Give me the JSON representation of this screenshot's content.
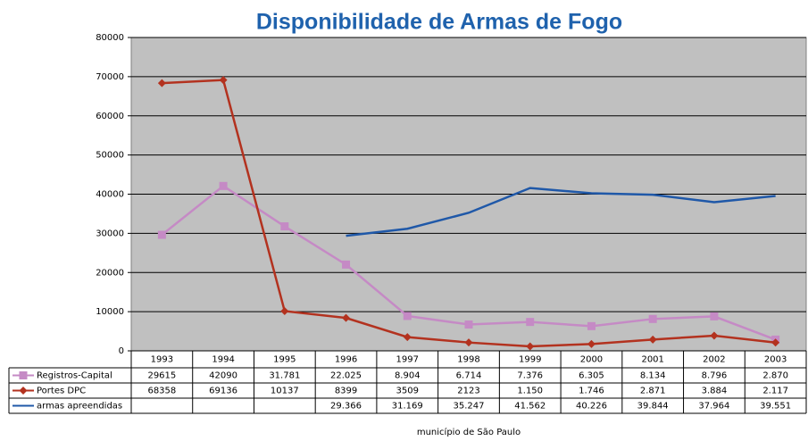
{
  "chart_data": {
    "type": "line",
    "title": "Disponibilidade de Armas de Fogo",
    "x_label": "município de São Paulo",
    "categories": [
      "1993",
      "1994",
      "1995",
      "1996",
      "1997",
      "1998",
      "1999",
      "2000",
      "2001",
      "2002",
      "2003"
    ],
    "ylim": [
      0,
      80000
    ],
    "yticks": [
      0,
      10000,
      20000,
      30000,
      40000,
      50000,
      60000,
      70000,
      80000
    ],
    "grid": true,
    "plot_background": "#c0c0c0",
    "series": [
      {
        "name": "Registros-Capital",
        "color": "#c58ac5",
        "marker": "square",
        "values": [
          29615,
          42090,
          31781,
          22025,
          8904,
          6714,
          7376,
          6305,
          8134,
          8796,
          2870
        ],
        "value_labels": [
          "29615",
          "42090",
          "31.781",
          "22.025",
          "8.904",
          "6.714",
          "7.376",
          "6.305",
          "8.134",
          "8.796",
          "2.870"
        ]
      },
      {
        "name": "Portes DPC",
        "color": "#b3321f",
        "marker": "diamond",
        "values": [
          68358,
          69136,
          10137,
          8399,
          3509,
          2123,
          1150,
          1746,
          2871,
          3884,
          2117
        ],
        "value_labels": [
          "68358",
          "69136",
          "10137",
          "8399",
          "3509",
          "2123",
          "1.150",
          "1.746",
          "2.871",
          "3.884",
          "2.117"
        ]
      },
      {
        "name": "armas apreendidas",
        "color": "#1f58a8",
        "marker": "none",
        "values": [
          null,
          null,
          null,
          29366,
          31169,
          35247,
          41562,
          40226,
          39844,
          37964,
          39551
        ],
        "value_labels": [
          null,
          null,
          null,
          "29.366",
          "31.169",
          "35.247",
          "41.562",
          "40.226",
          "39.844",
          "37.964",
          "39.551"
        ]
      }
    ]
  }
}
